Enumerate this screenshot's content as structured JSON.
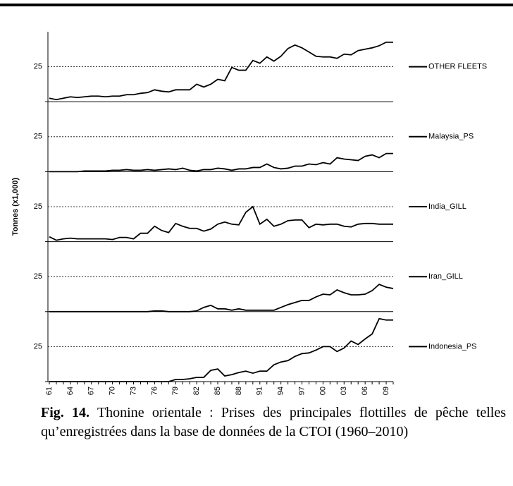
{
  "chart_data": {
    "type": "line",
    "ylabel": "Tonnes (x1,000)",
    "categories": [
      "61",
      null,
      null,
      "64",
      null,
      null,
      "67",
      null,
      null,
      "70",
      null,
      null,
      "73",
      null,
      null,
      "76",
      null,
      null,
      "79",
      null,
      null,
      "82",
      null,
      null,
      "85",
      null,
      null,
      "88",
      null,
      null,
      "91",
      null,
      null,
      "94",
      null,
      null,
      "97",
      null,
      null,
      "00",
      null,
      null,
      "03",
      null,
      null,
      "06",
      null,
      null,
      "09",
      null
    ],
    "ylim": [
      0,
      50
    ],
    "yticks": [
      25
    ],
    "grid": true,
    "series": [
      {
        "name": "OTHER FLEETS",
        "color": "#000000",
        "values": [
          2.5,
          1.5,
          2.5,
          3.5,
          3,
          3.5,
          4,
          4,
          3.5,
          4,
          4,
          5,
          5,
          6,
          6.5,
          8.5,
          7.5,
          7,
          8.5,
          8.5,
          8.5,
          12.5,
          10.5,
          12.5,
          16,
          15,
          24.5,
          22.5,
          22.5,
          29.5,
          27.5,
          32,
          29,
          32.5,
          38,
          40.5,
          38.5,
          35.5,
          32.5,
          32,
          32,
          31,
          34,
          33.5,
          36.5,
          37.5,
          38.5,
          40,
          42.5,
          42.5
        ]
      },
      {
        "name": "Malaysia_PS",
        "color": "#000000",
        "values": [
          0,
          0,
          0,
          0,
          0,
          0.5,
          0.5,
          0.5,
          0.5,
          1,
          1,
          1.5,
          1,
          1,
          1.5,
          1,
          1.5,
          2,
          1.5,
          2.5,
          1,
          0.5,
          1.5,
          1.5,
          2.5,
          2,
          1,
          2,
          2,
          3,
          3,
          5.5,
          3,
          2,
          2.5,
          4,
          4,
          5.5,
          5,
          6.5,
          5.5,
          10,
          9,
          8.5,
          8,
          11,
          12,
          10,
          13,
          13
        ]
      },
      {
        "name": "India_GILL",
        "color": "#000000",
        "values": [
          3.5,
          1,
          2,
          2.5,
          2,
          2,
          2,
          2,
          2,
          1.5,
          3,
          3,
          2,
          6,
          6,
          11,
          8,
          6.5,
          13,
          11,
          9.5,
          9.5,
          7.5,
          9,
          12.5,
          14,
          12.5,
          12,
          21,
          25,
          12.5,
          16,
          11,
          12.5,
          15,
          15.5,
          15.5,
          10,
          12.5,
          12,
          12.5,
          12.5,
          11,
          10.5,
          12.5,
          13,
          13,
          12.5,
          12.5,
          12.5
        ]
      },
      {
        "name": "Iran_GILL",
        "color": "#000000",
        "values": [
          0,
          0,
          0,
          0,
          0,
          0,
          0,
          0,
          0,
          0,
          0,
          0,
          0,
          0,
          0,
          0.5,
          0.5,
          0,
          0,
          0,
          0,
          0.5,
          3,
          4.5,
          2,
          2,
          1,
          2,
          1,
          1,
          1,
          1,
          1,
          3,
          5,
          6.5,
          8,
          8,
          10.5,
          12.5,
          12,
          15.5,
          13.5,
          12,
          12,
          12.5,
          15,
          19.5,
          17.5,
          16.5
        ]
      },
      {
        "name": "Indonesia_PS",
        "color": "#000000",
        "values": [
          0,
          0,
          0,
          0,
          0,
          0,
          0,
          0,
          0,
          0,
          0,
          0,
          0,
          0,
          0,
          0,
          0,
          0,
          1.5,
          1.5,
          2,
          3,
          3,
          8,
          9,
          4,
          5,
          6.5,
          7.5,
          6,
          7.5,
          7.5,
          12,
          14,
          15,
          18,
          20,
          20.5,
          22.5,
          25,
          25,
          21.5,
          24,
          29,
          26.5,
          30.5,
          34,
          45,
          44,
          44
        ]
      }
    ]
  },
  "caption": {
    "label": "Fig. 14.",
    "text": "Thonine orientale : Prises des principales flottilles de pêche telles qu’enregistrées dans la base de données de la CTOI (1960–2010)"
  }
}
